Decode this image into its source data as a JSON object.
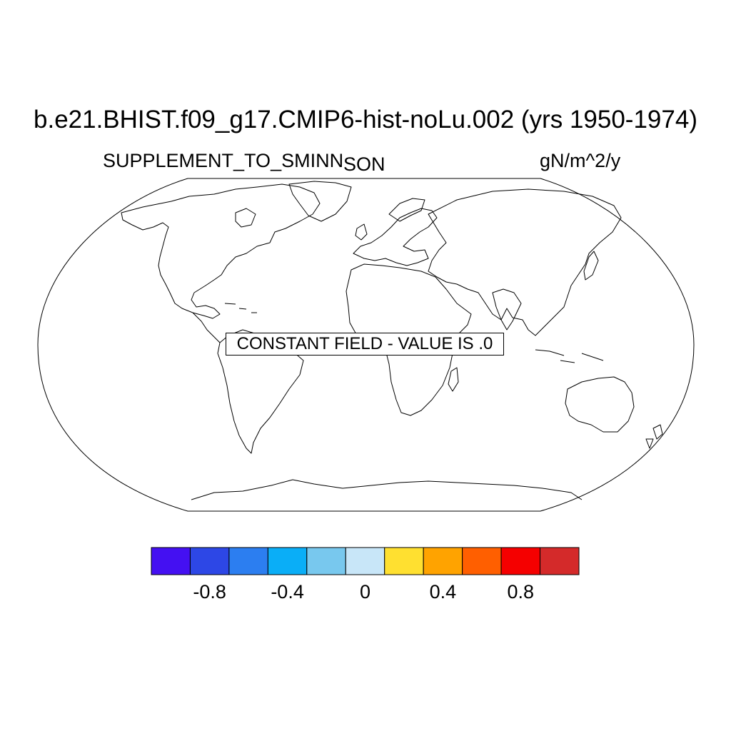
{
  "title": "b.e21.BHIST.f09_g17.CMIP6-hist-noLu.002 (yrs 1950-1974)",
  "left_subtitle": "SUPPLEMENT_TO_SMINN",
  "center_subtitle": "SON",
  "right_subtitle": "gN/m^2/y",
  "constant_field_message": "CONSTANT FIELD - VALUE IS .0",
  "colorbar": {
    "colors": [
      "#4410f2",
      "#2d47e6",
      "#2c7ef0",
      "#0aaef7",
      "#78c8ee",
      "#c8e6f8",
      "#ffe030",
      "#ffa300",
      "#ff5f00",
      "#f50000",
      "#d42a2a"
    ],
    "tick_labels": [
      {
        "value": -0.8,
        "label": "-0.8"
      },
      {
        "value": -0.4,
        "label": "-0.4"
      },
      {
        "value": 0,
        "label": "0"
      },
      {
        "value": 0.4,
        "label": "0.4"
      },
      {
        "value": 0.8,
        "label": "0.8"
      }
    ],
    "range": [
      -1.1,
      1.1
    ]
  }
}
